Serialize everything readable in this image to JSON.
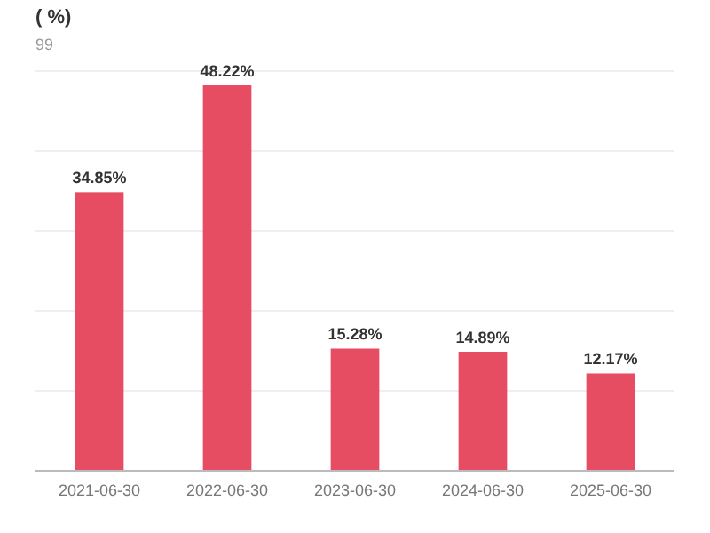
{
  "chart_data": {
    "type": "bar",
    "title": "( %)",
    "subtitle": "99",
    "categories": [
      "2021-06-30",
      "2022-06-30",
      "2023-06-30",
      "2024-06-30",
      "2025-06-30"
    ],
    "values": [
      34.85,
      48.22,
      15.28,
      14.89,
      12.17
    ],
    "value_labels": [
      "34.85%",
      "48.22%",
      "15.28%",
      "14.89%",
      "12.17%"
    ],
    "color": "#e64d62",
    "ylim": [
      0,
      50
    ],
    "yticks": [
      {
        "value": 0,
        "label": null
      },
      {
        "value": 10,
        "label": null
      },
      {
        "value": 20,
        "label": null
      },
      {
        "value": 30,
        "label": null
      },
      {
        "value": 40,
        "label": null
      },
      {
        "value": 50,
        "label": null
      }
    ],
    "grid": "y"
  }
}
